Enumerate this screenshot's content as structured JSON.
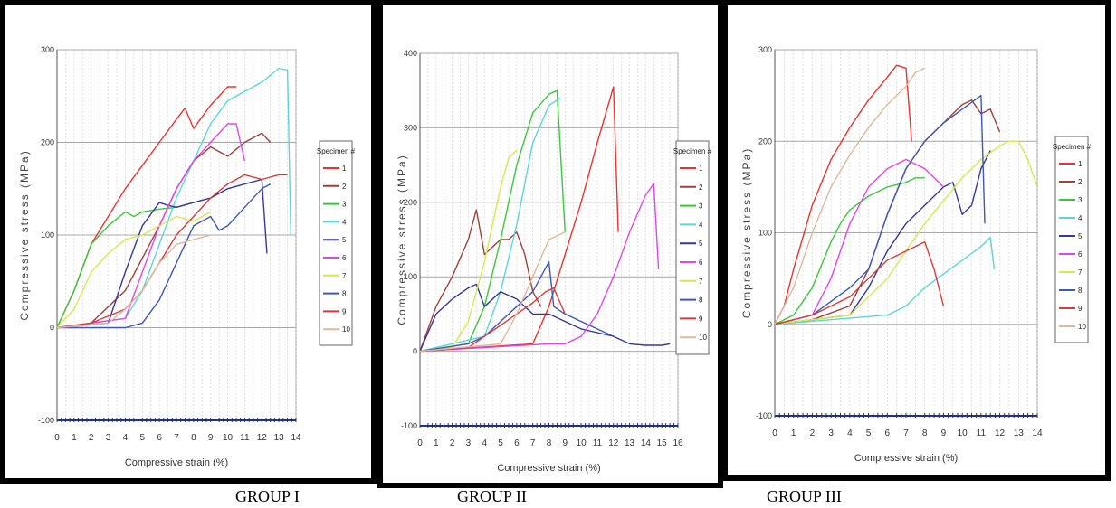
{
  "colors": [
    "#e8332e",
    "#a0413a",
    "#39c83a",
    "#5ad6d6",
    "#35389c",
    "#e045e8",
    "#d6e84e",
    "#3d58b8",
    "#d63c3c",
    "#ddb89a"
  ],
  "group_labels": [
    "GROUP I",
    "GROUP II",
    "GROUP III"
  ],
  "chart_data": [
    {
      "type": "line",
      "title": "",
      "xlabel": "Compressive strain (%)",
      "ylabel": "Compressive stress (MPa)",
      "xlim": [
        0,
        14
      ],
      "ylim": [
        -100,
        300
      ],
      "xticks": [
        "0",
        "1",
        "2",
        "3",
        "4",
        "5",
        "6",
        "7",
        "8",
        "9",
        "10",
        "11",
        "12",
        "13",
        "14"
      ],
      "yticks": [
        "-100",
        "0",
        "100",
        "200",
        "300"
      ],
      "legend_title": "Specimen #",
      "legend_labels": [
        "1",
        "2",
        "3",
        "4",
        "5",
        "6",
        "7",
        "8",
        "9",
        "10"
      ],
      "grid": true,
      "series": [
        {
          "name": "1",
          "x": [
            0,
            1,
            2,
            3,
            4,
            5,
            6,
            7,
            7.5,
            8,
            9,
            10,
            10.5
          ],
          "y": [
            0,
            40,
            90,
            120,
            150,
            175,
            200,
            225,
            237,
            215,
            240,
            260,
            260
          ]
        },
        {
          "name": "2",
          "x": [
            0,
            2,
            4,
            6,
            7,
            8,
            9,
            10,
            11,
            12,
            12.5
          ],
          "y": [
            0,
            5,
            40,
            110,
            150,
            180,
            195,
            185,
            200,
            210,
            200
          ]
        },
        {
          "name": "3",
          "x": [
            0,
            1,
            2,
            3,
            4,
            4.5,
            5,
            6,
            7,
            8,
            9,
            9.5
          ],
          "y": [
            0,
            40,
            90,
            110,
            125,
            120,
            125,
            128,
            130,
            135,
            140,
            145
          ]
        },
        {
          "name": "4",
          "x": [
            0,
            4,
            5,
            6,
            7,
            8,
            9,
            10,
            11,
            12,
            13,
            13.5,
            13.7
          ],
          "y": [
            0,
            10,
            40,
            90,
            140,
            180,
            220,
            245,
            255,
            265,
            280,
            278,
            100
          ]
        },
        {
          "name": "5",
          "x": [
            0,
            3,
            4,
            5,
            6,
            6.5,
            7,
            8,
            9,
            9.5,
            10,
            11,
            12,
            12.3
          ],
          "y": [
            0,
            5,
            60,
            110,
            135,
            132,
            130,
            135,
            140,
            145,
            150,
            155,
            160,
            80
          ]
        },
        {
          "name": "6",
          "x": [
            0,
            4,
            5,
            6,
            7,
            8,
            9,
            10,
            10.5,
            11
          ],
          "y": [
            0,
            10,
            60,
            110,
            150,
            180,
            200,
            220,
            220,
            180
          ]
        },
        {
          "name": "7",
          "x": [
            0,
            1,
            2,
            3,
            4,
            5,
            6,
            7,
            8,
            9
          ],
          "y": [
            0,
            20,
            60,
            80,
            95,
            100,
            110,
            120,
            115,
            125
          ]
        },
        {
          "name": "8",
          "x": [
            0,
            4,
            5,
            6,
            7,
            8,
            9,
            9.5,
            10,
            11,
            12,
            12.5
          ],
          "y": [
            0,
            0,
            5,
            30,
            70,
            110,
            120,
            105,
            110,
            130,
            150,
            155
          ]
        },
        {
          "name": "9",
          "x": [
            0,
            2,
            4,
            5,
            6,
            7,
            8,
            9,
            10,
            11,
            12,
            13,
            13.5
          ],
          "y": [
            0,
            5,
            20,
            40,
            70,
            100,
            120,
            140,
            155,
            165,
            160,
            165,
            165
          ]
        },
        {
          "name": "10",
          "x": [
            0,
            3,
            4,
            5,
            6,
            7,
            8,
            9
          ],
          "y": [
            0,
            5,
            20,
            40,
            70,
            90,
            95,
            100
          ]
        }
      ]
    },
    {
      "type": "line",
      "title": "",
      "xlabel": "Compressive strain (%)",
      "ylabel": "Compressive stress (MPa)",
      "xlim": [
        0,
        16
      ],
      "ylim": [
        -100,
        400
      ],
      "xticks": [
        "0",
        "1",
        "2",
        "3",
        "4",
        "5",
        "6",
        "7",
        "8",
        "9",
        "10",
        "11",
        "12",
        "13",
        "14",
        "15",
        "16"
      ],
      "yticks": [
        "-100",
        "0",
        "100",
        "200",
        "300",
        "400"
      ],
      "legend_title": "Specimen #",
      "legend_labels": [
        "1",
        "2",
        "3",
        "4",
        "5",
        "6",
        "7",
        "8",
        "9",
        "10"
      ],
      "grid": true,
      "series": [
        {
          "name": "1",
          "x": [
            0,
            7,
            8,
            9,
            10,
            11,
            12,
            12.3
          ],
          "y": [
            0,
            10,
            60,
            130,
            200,
            280,
            355,
            160
          ]
        },
        {
          "name": "2",
          "x": [
            0,
            1,
            2,
            3,
            3.5,
            4,
            5,
            5.5,
            6,
            6.5,
            7,
            7.5
          ],
          "y": [
            0,
            60,
            100,
            150,
            190,
            130,
            150,
            150,
            160,
            130,
            80,
            60
          ]
        },
        {
          "name": "3",
          "x": [
            0,
            3,
            4,
            5,
            6,
            7,
            8,
            8.5,
            9
          ],
          "y": [
            0,
            10,
            60,
            150,
            250,
            320,
            345,
            350,
            160
          ]
        },
        {
          "name": "4",
          "x": [
            0,
            4,
            5,
            6,
            7,
            8,
            8.7
          ],
          "y": [
            0,
            20,
            80,
            170,
            280,
            330,
            340
          ]
        },
        {
          "name": "5",
          "x": [
            0,
            1,
            2,
            3,
            3.5,
            4,
            5,
            6,
            7,
            8,
            9,
            10,
            11,
            12,
            13,
            14,
            15,
            15.5
          ],
          "y": [
            0,
            50,
            70,
            85,
            90,
            60,
            80,
            70,
            50,
            50,
            40,
            30,
            25,
            20,
            10,
            8,
            8,
            10
          ]
        },
        {
          "name": "6",
          "x": [
            0,
            8,
            9,
            10,
            11,
            12,
            13,
            14,
            14.5,
            14.8
          ],
          "y": [
            0,
            10,
            10,
            20,
            50,
            100,
            160,
            210,
            225,
            110
          ]
        },
        {
          "name": "7",
          "x": [
            0,
            2,
            3,
            4,
            5,
            5.5,
            6
          ],
          "y": [
            0,
            5,
            40,
            120,
            220,
            260,
            270
          ]
        },
        {
          "name": "8",
          "x": [
            0,
            3,
            4,
            5,
            6,
            7,
            7.5,
            8,
            8.3,
            9,
            10,
            11,
            12
          ],
          "y": [
            0,
            10,
            20,
            40,
            60,
            80,
            100,
            120,
            60,
            50,
            40,
            30,
            20
          ]
        },
        {
          "name": "9",
          "x": [
            0,
            3,
            4,
            5,
            6,
            7,
            7.8,
            8.3,
            9
          ],
          "y": [
            0,
            5,
            20,
            35,
            50,
            65,
            80,
            85,
            50
          ]
        },
        {
          "name": "10",
          "x": [
            0,
            5,
            6,
            7,
            8,
            9
          ],
          "y": [
            0,
            10,
            50,
            100,
            150,
            160
          ]
        }
      ]
    },
    {
      "type": "line",
      "title": "",
      "xlabel": "Compressive strain (%)",
      "ylabel": "Compressive stress (MPa)",
      "xlim": [
        0,
        14
      ],
      "ylim": [
        -100,
        300
      ],
      "xticks": [
        "0",
        "1",
        "2",
        "3",
        "4",
        "5",
        "6",
        "7",
        "8",
        "9",
        "10",
        "11",
        "12",
        "13",
        "14"
      ],
      "yticks": [
        "-100",
        "0",
        "100",
        "200",
        "300"
      ],
      "legend_title": "Specimen #",
      "legend_labels": [
        "1",
        "2",
        "3",
        "4",
        "5",
        "6",
        "7",
        "8",
        "9",
        "10"
      ],
      "grid": true,
      "series": [
        {
          "name": "1",
          "x": [
            0,
            0.5,
            1,
            2,
            3,
            4,
            5,
            6,
            6.5,
            7,
            7.3
          ],
          "y": [
            0,
            20,
            60,
            130,
            180,
            215,
            245,
            270,
            283,
            280,
            200
          ]
        },
        {
          "name": "2",
          "x": [
            0,
            2,
            4,
            5,
            6,
            7,
            8,
            9,
            10,
            10.5,
            11,
            11.5,
            12
          ],
          "y": [
            0,
            5,
            20,
            60,
            120,
            170,
            200,
            220,
            240,
            245,
            230,
            235,
            210
          ]
        },
        {
          "name": "3",
          "x": [
            0,
            1,
            2,
            3,
            3.5,
            4,
            5,
            6,
            7,
            7.5,
            8
          ],
          "y": [
            0,
            10,
            40,
            90,
            110,
            125,
            140,
            150,
            155,
            160,
            160
          ]
        },
        {
          "name": "4",
          "x": [
            0,
            6,
            7,
            8,
            9,
            10,
            11,
            11.5,
            11.7
          ],
          "y": [
            0,
            10,
            20,
            40,
            55,
            70,
            85,
            95,
            60
          ]
        },
        {
          "name": "5",
          "x": [
            0,
            4,
            5,
            6,
            7,
            8,
            9,
            9.5,
            10,
            10.5,
            11,
            11.5
          ],
          "y": [
            0,
            10,
            40,
            80,
            110,
            130,
            150,
            155,
            120,
            130,
            170,
            190
          ]
        },
        {
          "name": "6",
          "x": [
            0,
            2,
            3,
            4,
            5,
            6,
            7,
            7.5,
            8,
            8.5,
            9
          ],
          "y": [
            0,
            10,
            50,
            110,
            150,
            170,
            180,
            175,
            170,
            160,
            150
          ]
        },
        {
          "name": "7",
          "x": [
            0,
            4,
            6,
            8,
            10,
            11,
            12,
            12.5,
            13,
            13.5,
            14
          ],
          "y": [
            0,
            10,
            50,
            110,
            160,
            180,
            195,
            200,
            200,
            180,
            150
          ]
        },
        {
          "name": "8",
          "x": [
            0,
            2,
            3,
            4,
            5,
            6,
            7,
            8,
            9,
            10,
            11,
            11.2
          ],
          "y": [
            0,
            10,
            25,
            40,
            60,
            120,
            170,
            200,
            220,
            235,
            250,
            110
          ]
        },
        {
          "name": "9",
          "x": [
            0,
            2,
            4,
            5,
            6,
            7,
            7.5,
            8,
            8.5,
            9
          ],
          "y": [
            0,
            10,
            30,
            50,
            70,
            80,
            85,
            90,
            60,
            20
          ]
        },
        {
          "name": "10",
          "x": [
            0,
            1,
            2,
            3,
            4,
            5,
            6,
            7,
            7.5,
            8
          ],
          "y": [
            0,
            40,
            100,
            150,
            185,
            215,
            240,
            260,
            275,
            280
          ]
        }
      ]
    }
  ]
}
